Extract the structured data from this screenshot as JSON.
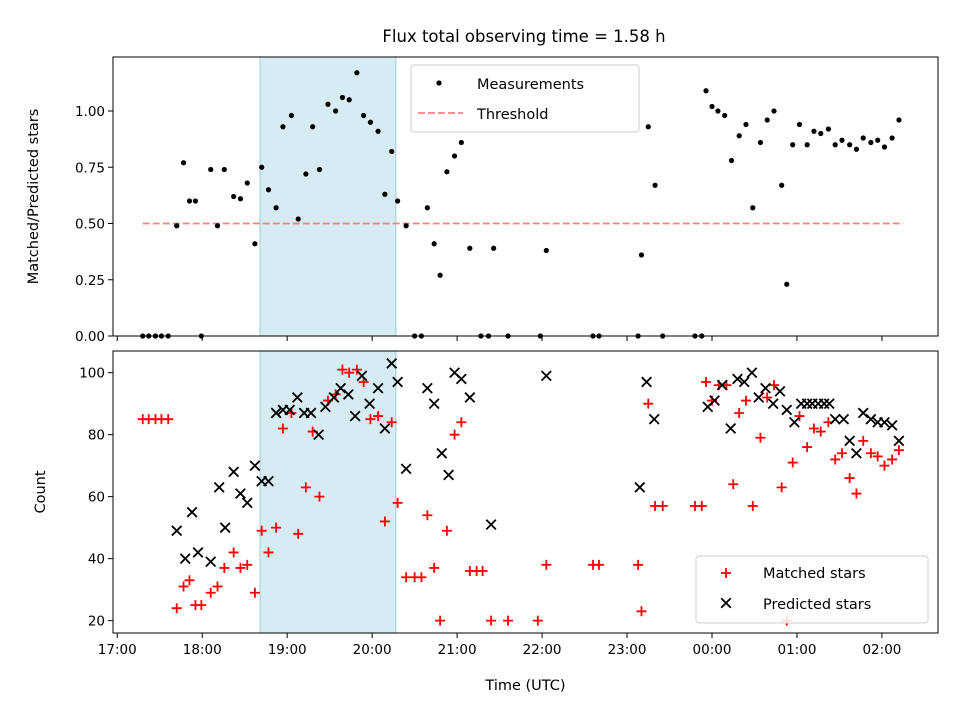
{
  "chart_data": [
    {
      "type": "scatter",
      "title": "Flux total observing time = 1.58 h",
      "xlabel": "",
      "ylabel": "Matched/Predicted stars",
      "xlim": [
        16.95,
        26.66
      ],
      "ylim": [
        0,
        1.24
      ],
      "yticks": [
        0.0,
        0.25,
        0.5,
        0.75,
        1.0
      ],
      "ytick_labels": [
        "0.00",
        "0.25",
        "0.50",
        "0.75",
        "1.00"
      ],
      "highlight_span": [
        18.68,
        20.28
      ],
      "threshold": {
        "name": "Threshold",
        "y": 0.5,
        "x": [
          17.3,
          26.25
        ],
        "color": "#ff8080"
      },
      "series": [
        {
          "name": "Measurements",
          "color": "#000000",
          "points": [
            [
              17.3,
              0
            ],
            [
              17.37,
              0
            ],
            [
              17.45,
              0
            ],
            [
              17.52,
              0
            ],
            [
              17.6,
              0
            ],
            [
              17.7,
              0.49
            ],
            [
              17.78,
              0.77
            ],
            [
              17.85,
              0.6
            ],
            [
              17.92,
              0.6
            ],
            [
              17.99,
              0
            ],
            [
              18.1,
              0.74
            ],
            [
              18.18,
              0.49
            ],
            [
              18.26,
              0.74
            ],
            [
              18.37,
              0.62
            ],
            [
              18.45,
              0.61
            ],
            [
              18.53,
              0.68
            ],
            [
              18.62,
              0.41
            ],
            [
              18.7,
              0.75
            ],
            [
              18.78,
              0.65
            ],
            [
              18.87,
              0.57
            ],
            [
              18.95,
              0.93
            ],
            [
              19.05,
              0.98
            ],
            [
              19.13,
              0.52
            ],
            [
              19.22,
              0.72
            ],
            [
              19.3,
              0.93
            ],
            [
              19.38,
              0.74
            ],
            [
              19.48,
              1.03
            ],
            [
              19.57,
              1.0
            ],
            [
              19.65,
              1.06
            ],
            [
              19.73,
              1.05
            ],
            [
              19.82,
              1.17
            ],
            [
              19.9,
              0.98
            ],
            [
              19.98,
              0.95
            ],
            [
              20.07,
              0.91
            ],
            [
              20.15,
              0.63
            ],
            [
              20.23,
              0.82
            ],
            [
              20.3,
              0.6
            ],
            [
              20.4,
              0.49
            ],
            [
              20.5,
              0
            ],
            [
              20.58,
              0
            ],
            [
              20.65,
              0.57
            ],
            [
              20.73,
              0.41
            ],
            [
              20.8,
              0.27
            ],
            [
              20.88,
              0.73
            ],
            [
              20.97,
              0.8
            ],
            [
              21.05,
              0.86
            ],
            [
              21.15,
              0.39
            ],
            [
              21.28,
              0
            ],
            [
              21.37,
              0
            ],
            [
              21.43,
              0.39
            ],
            [
              21.6,
              0
            ],
            [
              21.98,
              0
            ],
            [
              22.05,
              0.38
            ],
            [
              22.6,
              0
            ],
            [
              22.67,
              0
            ],
            [
              23.13,
              0
            ],
            [
              23.17,
              0.36
            ],
            [
              23.25,
              0.93
            ],
            [
              23.33,
              0.67
            ],
            [
              23.42,
              0
            ],
            [
              23.8,
              0
            ],
            [
              23.88,
              0
            ],
            [
              23.93,
              1.09
            ],
            [
              24.0,
              1.02
            ],
            [
              24.07,
              1.0
            ],
            [
              24.15,
              0.98
            ],
            [
              24.23,
              0.78
            ],
            [
              24.32,
              0.89
            ],
            [
              24.4,
              0.94
            ],
            [
              24.48,
              0.57
            ],
            [
              24.57,
              0.86
            ],
            [
              24.65,
              0.96
            ],
            [
              24.73,
              1.0
            ],
            [
              24.82,
              0.67
            ],
            [
              24.88,
              0.23
            ],
            [
              24.95,
              0.85
            ],
            [
              25.03,
              0.94
            ],
            [
              25.12,
              0.85
            ],
            [
              25.2,
              0.91
            ],
            [
              25.28,
              0.9
            ],
            [
              25.37,
              0.92
            ],
            [
              25.45,
              0.85
            ],
            [
              25.53,
              0.87
            ],
            [
              25.62,
              0.85
            ],
            [
              25.7,
              0.83
            ],
            [
              25.78,
              0.88
            ],
            [
              25.87,
              0.86
            ],
            [
              25.95,
              0.87
            ],
            [
              26.03,
              0.84
            ],
            [
              26.12,
              0.88
            ],
            [
              26.2,
              0.96
            ]
          ]
        }
      ],
      "legend": {
        "position": "top-center",
        "entries": [
          "Measurements",
          "Threshold"
        ]
      }
    },
    {
      "type": "scatter",
      "title": "",
      "xlabel": "Time (UTC)",
      "ylabel": "Count",
      "xlim": [
        16.95,
        26.66
      ],
      "ylim": [
        16,
        107
      ],
      "yticks": [
        20,
        40,
        60,
        80,
        100
      ],
      "ytick_labels": [
        "20",
        "40",
        "60",
        "80",
        "100"
      ],
      "xticks": [
        17,
        18,
        19,
        20,
        21,
        22,
        23,
        24,
        25,
        26
      ],
      "xtick_labels": [
        "17:00",
        "18:00",
        "19:00",
        "20:00",
        "21:00",
        "22:00",
        "23:00",
        "00:00",
        "01:00",
        "02:00"
      ],
      "highlight_span": [
        18.68,
        20.28
      ],
      "series": [
        {
          "name": "Matched stars",
          "marker": "plus",
          "color": "#ff0000",
          "points": [
            [
              17.3,
              85
            ],
            [
              17.37,
              85
            ],
            [
              17.45,
              85
            ],
            [
              17.52,
              85
            ],
            [
              17.6,
              85
            ],
            [
              17.7,
              24
            ],
            [
              17.78,
              31
            ],
            [
              17.85,
              33
            ],
            [
              17.92,
              25
            ],
            [
              17.99,
              25
            ],
            [
              18.1,
              29
            ],
            [
              18.18,
              31
            ],
            [
              18.26,
              37
            ],
            [
              18.37,
              42
            ],
            [
              18.45,
              37
            ],
            [
              18.53,
              38
            ],
            [
              18.62,
              29
            ],
            [
              18.7,
              49
            ],
            [
              18.78,
              42
            ],
            [
              18.87,
              50
            ],
            [
              18.95,
              82
            ],
            [
              19.05,
              87
            ],
            [
              19.13,
              48
            ],
            [
              19.22,
              63
            ],
            [
              19.3,
              81
            ],
            [
              19.38,
              60
            ],
            [
              19.48,
              91
            ],
            [
              19.57,
              93
            ],
            [
              19.65,
              101
            ],
            [
              19.73,
              100
            ],
            [
              19.82,
              101
            ],
            [
              19.9,
              97
            ],
            [
              19.98,
              85
            ],
            [
              20.07,
              86
            ],
            [
              20.15,
              52
            ],
            [
              20.23,
              84
            ],
            [
              20.3,
              58
            ],
            [
              20.4,
              34
            ],
            [
              20.5,
              34
            ],
            [
              20.58,
              34
            ],
            [
              20.65,
              54
            ],
            [
              20.73,
              37
            ],
            [
              20.8,
              20
            ],
            [
              20.88,
              49
            ],
            [
              20.97,
              80
            ],
            [
              21.05,
              84
            ],
            [
              21.15,
              36
            ],
            [
              21.23,
              36
            ],
            [
              21.3,
              36
            ],
            [
              21.4,
              20
            ],
            [
              21.6,
              20
            ],
            [
              21.95,
              20
            ],
            [
              22.05,
              38
            ],
            [
              22.6,
              38
            ],
            [
              22.67,
              38
            ],
            [
              23.13,
              38
            ],
            [
              23.17,
              23
            ],
            [
              23.25,
              90
            ],
            [
              23.33,
              57
            ],
            [
              23.42,
              57
            ],
            [
              23.8,
              57
            ],
            [
              23.88,
              57
            ],
            [
              23.93,
              97
            ],
            [
              24.0,
              91
            ],
            [
              24.08,
              96
            ],
            [
              24.17,
              96
            ],
            [
              24.25,
              64
            ],
            [
              24.32,
              87
            ],
            [
              24.4,
              91
            ],
            [
              24.48,
              57
            ],
            [
              24.57,
              79
            ],
            [
              24.65,
              92
            ],
            [
              24.73,
              96
            ],
            [
              24.82,
              63
            ],
            [
              24.88,
              20
            ],
            [
              24.95,
              71
            ],
            [
              25.03,
              86
            ],
            [
              25.12,
              76
            ],
            [
              25.2,
              82
            ],
            [
              25.28,
              81
            ],
            [
              25.37,
              84
            ],
            [
              25.45,
              72
            ],
            [
              25.53,
              74
            ],
            [
              25.62,
              66
            ],
            [
              25.7,
              61
            ],
            [
              25.78,
              78
            ],
            [
              25.87,
              74
            ],
            [
              25.95,
              73
            ],
            [
              26.03,
              70
            ],
            [
              26.12,
              72
            ],
            [
              26.2,
              75
            ]
          ]
        },
        {
          "name": "Predicted stars",
          "marker": "x",
          "color": "#000000",
          "points": [
            [
              17.7,
              49
            ],
            [
              17.8,
              40
            ],
            [
              17.88,
              55
            ],
            [
              17.95,
              42
            ],
            [
              18.1,
              39
            ],
            [
              18.2,
              63
            ],
            [
              18.27,
              50
            ],
            [
              18.37,
              68
            ],
            [
              18.45,
              61
            ],
            [
              18.53,
              58
            ],
            [
              18.62,
              70
            ],
            [
              18.7,
              65
            ],
            [
              18.78,
              65
            ],
            [
              18.87,
              87
            ],
            [
              18.95,
              88
            ],
            [
              19.03,
              88
            ],
            [
              19.12,
              92
            ],
            [
              19.2,
              87
            ],
            [
              19.28,
              87
            ],
            [
              19.37,
              80
            ],
            [
              19.45,
              89
            ],
            [
              19.55,
              92
            ],
            [
              19.63,
              95
            ],
            [
              19.72,
              93
            ],
            [
              19.8,
              86
            ],
            [
              19.88,
              99
            ],
            [
              19.97,
              90
            ],
            [
              20.07,
              95
            ],
            [
              20.15,
              82
            ],
            [
              20.23,
              103
            ],
            [
              20.3,
              97
            ],
            [
              20.4,
              69
            ],
            [
              20.65,
              95
            ],
            [
              20.73,
              90
            ],
            [
              20.82,
              74
            ],
            [
              20.9,
              67
            ],
            [
              20.97,
              100
            ],
            [
              21.05,
              98
            ],
            [
              21.15,
              92
            ],
            [
              21.4,
              51
            ],
            [
              22.05,
              99
            ],
            [
              23.15,
              63
            ],
            [
              23.23,
              97
            ],
            [
              23.32,
              85
            ],
            [
              23.95,
              89
            ],
            [
              24.03,
              91
            ],
            [
              24.12,
              96
            ],
            [
              24.22,
              82
            ],
            [
              24.3,
              98
            ],
            [
              24.38,
              97
            ],
            [
              24.47,
              100
            ],
            [
              24.55,
              92
            ],
            [
              24.63,
              95
            ],
            [
              24.72,
              90
            ],
            [
              24.8,
              94
            ],
            [
              24.88,
              88
            ],
            [
              24.97,
              84
            ],
            [
              25.05,
              90
            ],
            [
              25.12,
              90
            ],
            [
              25.18,
              90
            ],
            [
              25.25,
              90
            ],
            [
              25.32,
              90
            ],
            [
              25.38,
              90
            ],
            [
              25.45,
              85
            ],
            [
              25.55,
              85
            ],
            [
              25.62,
              78
            ],
            [
              25.7,
              74
            ],
            [
              25.78,
              87
            ],
            [
              25.87,
              85
            ],
            [
              25.95,
              84
            ],
            [
              26.03,
              84
            ],
            [
              26.12,
              83
            ],
            [
              26.2,
              78
            ]
          ]
        }
      ],
      "legend": {
        "position": "lower-right",
        "entries": [
          "Matched stars",
          "Predicted stars"
        ]
      }
    }
  ]
}
